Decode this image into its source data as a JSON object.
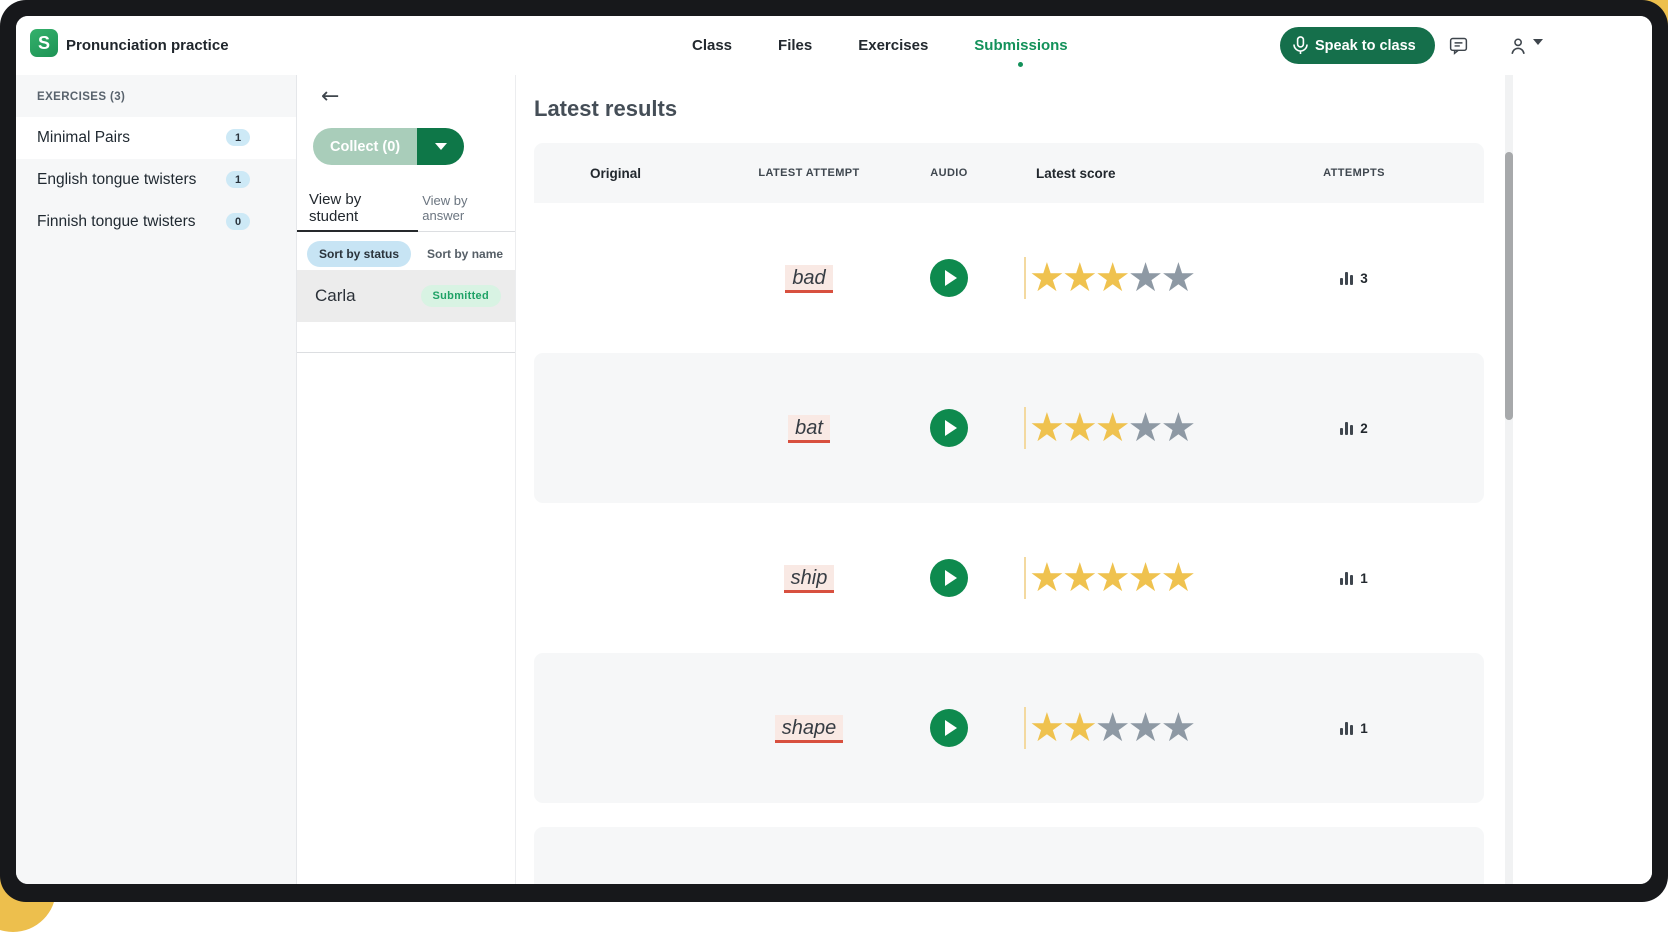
{
  "header": {
    "logo_letter": "S",
    "app_title": "Pronunciation practice",
    "nav": [
      {
        "label": "Class",
        "active": false
      },
      {
        "label": "Files",
        "active": false
      },
      {
        "label": "Exercises",
        "active": false
      },
      {
        "label": "Submissions",
        "active": true
      }
    ],
    "speak_button_label": "Speak to class"
  },
  "sidebar": {
    "heading": "EXERCISES (3)",
    "items": [
      {
        "label": "Minimal Pairs",
        "count": "1",
        "selected": true
      },
      {
        "label": "English tongue twisters",
        "count": "1",
        "selected": false
      },
      {
        "label": "Finnish tongue twisters",
        "count": "0",
        "selected": false
      }
    ]
  },
  "panel": {
    "back_icon": "←",
    "collect_button_label": "Collect (0)",
    "tabs": [
      {
        "label": "View by student",
        "active": true
      },
      {
        "label": "View by answer",
        "active": false
      }
    ],
    "sort_options": [
      {
        "label": "Sort by status",
        "active": true
      },
      {
        "label": "Sort by name",
        "active": false
      }
    ],
    "students": [
      {
        "name": "Carla",
        "status": "Submitted"
      }
    ]
  },
  "main": {
    "title": "Latest results",
    "table": {
      "columns": [
        "Original",
        "LATEST ATTEMPT",
        "AUDIO",
        "Latest score",
        "ATTEMPTS"
      ],
      "max_score": 5,
      "rows": [
        {
          "word": "bad",
          "score": 3,
          "attempts": "3",
          "shaded": false
        },
        {
          "word": "bat",
          "score": 3,
          "attempts": "2",
          "shaded": true
        },
        {
          "word": "ship",
          "score": 5,
          "attempts": "1",
          "shaded": false
        },
        {
          "word": "shape",
          "score": 2,
          "attempts": "1",
          "shaded": true
        }
      ],
      "partial_next_row_visible": true
    }
  },
  "colors": {
    "brand_green": "#1E9C5D",
    "dark_green_button": "#156F4B",
    "active_nav_green": "#13915A",
    "collect_disabled_green": "#A9CDBA",
    "collect_caret_green": "#0E7748",
    "play_green": "#0E8A4E",
    "star_yellow": "#EFC24F",
    "star_gray": "#8E99A4",
    "word_highlight_bg": "#F9E9E4",
    "word_underline_red": "#D8503F",
    "count_badge_blue": "#CDE9F6",
    "sort_chip_blue": "#C7E4F4",
    "submitted_badge_bg": "#D8F3E3",
    "submitted_badge_text": "#1EA266",
    "row_shade_gray": "#F6F7F8",
    "student_row_gray": "#ECECEC",
    "frame_dark": "#17181B",
    "corner_accent_yellow": "#EDBF4D"
  }
}
